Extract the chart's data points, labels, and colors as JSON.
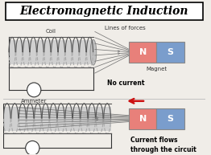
{
  "title": "Electromagnetic Induction",
  "title_fontsize": 10,
  "bg_color": "#f0ede8",
  "coil_color": "#444444",
  "magnet_N_color": "#e8807a",
  "magnet_S_color": "#7a9dcc",
  "magnet_text_color": "#ffffff",
  "wire_color": "#222222",
  "ammeter_color": "#222222",
  "arrow_color": "#cc1111",
  "label_fontsize": 5.0,
  "label_color": "#333333",
  "coil_label": "Coil",
  "magnet_label": "Magnet",
  "lines_label": "Lines of forces",
  "no_current_label": "No current",
  "current_label1": "Current flows",
  "current_label2": "through the circuit",
  "ammeter_label": "Ammeter",
  "N_label": "N",
  "S_label": "S"
}
